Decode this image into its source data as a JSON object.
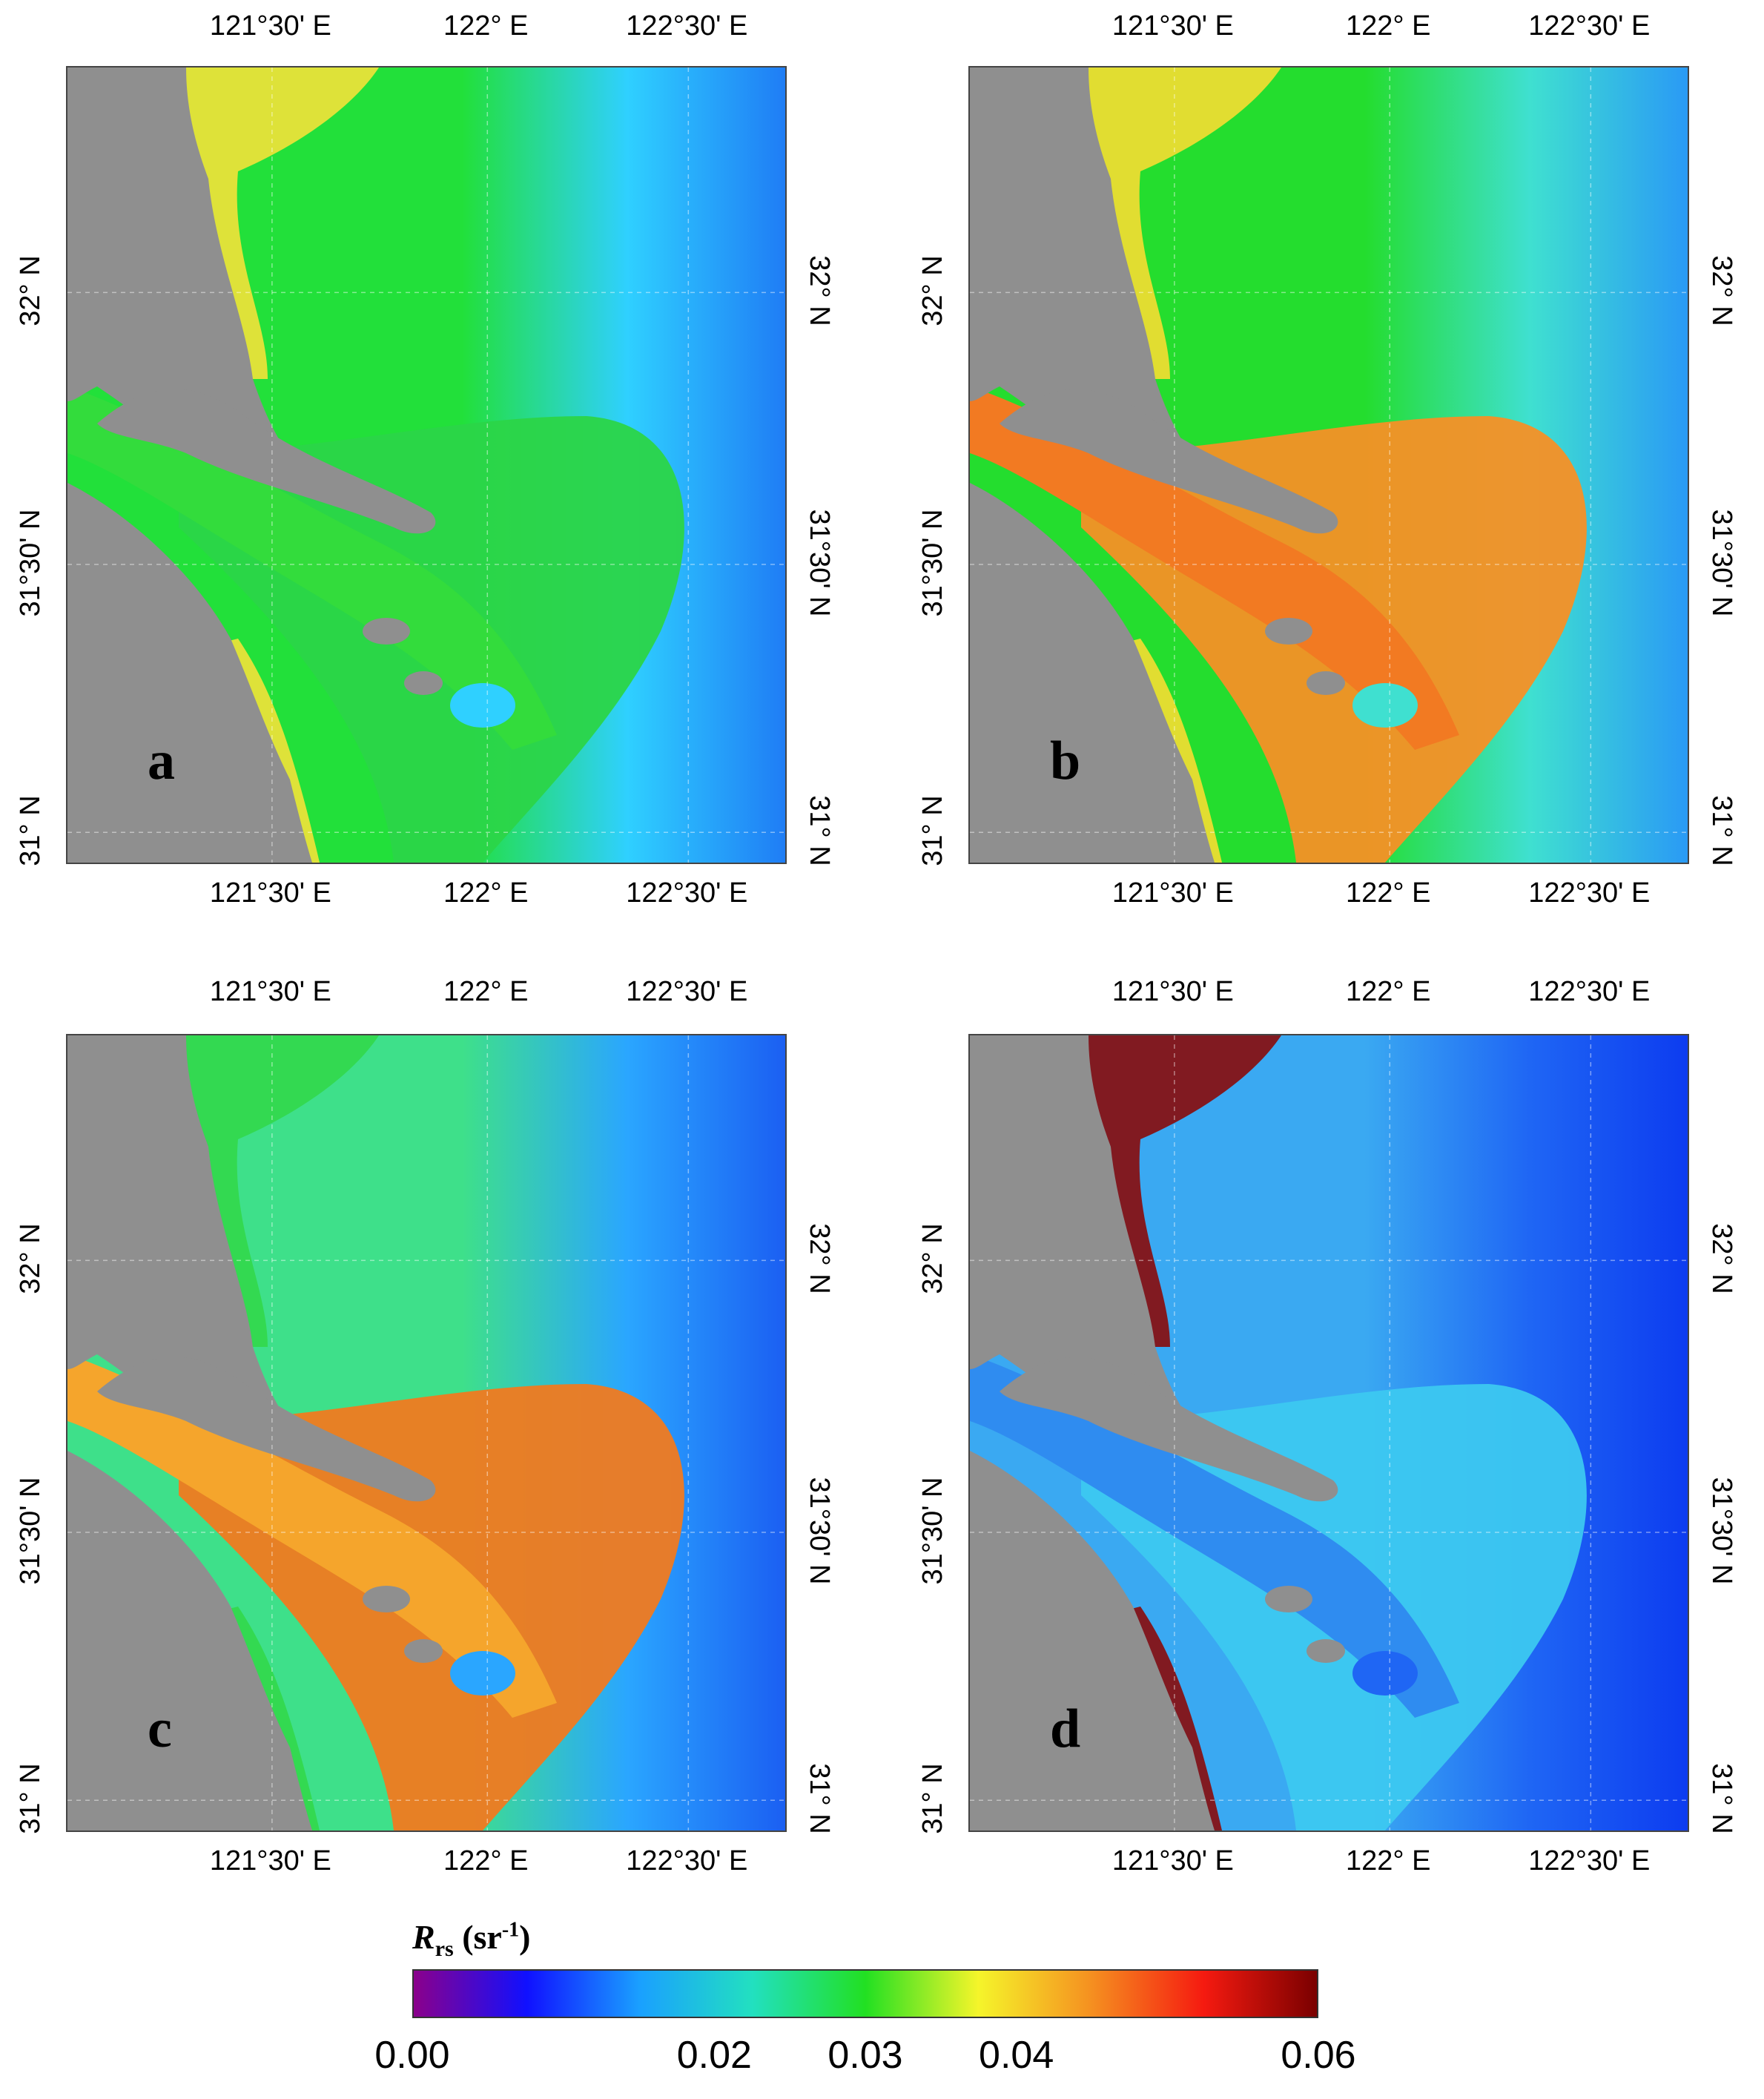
{
  "panels": [
    {
      "label": "a",
      "top_ticks": [
        "121°30' E",
        "122° E",
        "122°30' E"
      ],
      "bottom_ticks": [
        "121°30' E",
        "122° E",
        "122°30' E"
      ],
      "left_ticks": [
        "32° N",
        "31°30' N",
        "31° N"
      ],
      "right_ticks": [
        "32° N",
        "31°30' N",
        "31° N"
      ],
      "colors": {
        "open": "#1f7df5",
        "mid": "#2fd0ff",
        "near": "#22e03a",
        "plume": "#2bd548",
        "river": "#33dc3c",
        "coast": "#f3e23a"
      }
    },
    {
      "label": "b",
      "top_ticks": [
        "121°30' E",
        "122° E",
        "122°30' E"
      ],
      "bottom_ticks": [
        "121°30' E",
        "122° E",
        "122°30' E"
      ],
      "left_ticks": [
        "32° N",
        "31°30' N",
        "31° N"
      ],
      "right_ticks": [
        "32° N",
        "31°30' N",
        "31° N"
      ],
      "colors": {
        "open": "#2a9af5",
        "mid": "#3fe0d0",
        "near": "#24dd2e",
        "plume": "#f59026",
        "river": "#f27a22",
        "coast": "#f6dd32"
      }
    },
    {
      "label": "c",
      "top_ticks": [
        "121°30' E",
        "122° E",
        "122°30' E"
      ],
      "bottom_ticks": [
        "121°30' E",
        "122° E",
        "122°30' E"
      ],
      "left_ticks": [
        "32° N",
        "31°30' N",
        "31° N"
      ],
      "right_ticks": [
        "32° N",
        "31°30' N",
        "31° N"
      ],
      "colors": {
        "open": "#1b5ff2",
        "mid": "#2aa6ff",
        "near": "#3ee08a",
        "plume": "#f07a20",
        "river": "#f5a52c",
        "coast": "#32d84a"
      }
    },
    {
      "label": "d",
      "top_ticks": [
        "121°30' E",
        "122° E",
        "122°30' E"
      ],
      "bottom_ticks": [
        "121°30' E",
        "122° E",
        "122°30' E"
      ],
      "left_ticks": [
        "32° N",
        "31°30' N",
        "31° N"
      ],
      "right_ticks": [
        "32° N",
        "31°30' N",
        "31° N"
      ],
      "colors": {
        "open": "#0d3cf0",
        "mid": "#1f66f4",
        "near": "#3aa9f2",
        "plume": "#3cc8f0",
        "river": "#2f8cf0",
        "coast": "#8a0a0a"
      }
    }
  ],
  "land_color": "#8f8f8f",
  "colorbar": {
    "title_var": "R",
    "title_sub": "rs",
    "title_unit": " (sr",
    "title_exp": "-1",
    "title_close": ")",
    "min": 0.0,
    "max": 0.06,
    "ticks": [
      "0.00",
      "0.02",
      "0.03",
      "0.04",
      "0.06"
    ],
    "tick_values": [
      0.0,
      0.02,
      0.03,
      0.04,
      0.06
    ],
    "gradient": [
      "#8b008b",
      "#1010ff",
      "#1aa0ff",
      "#22e0c0",
      "#22e022",
      "#f5f52a",
      "#f59020",
      "#f51a10",
      "#7a0000"
    ]
  }
}
